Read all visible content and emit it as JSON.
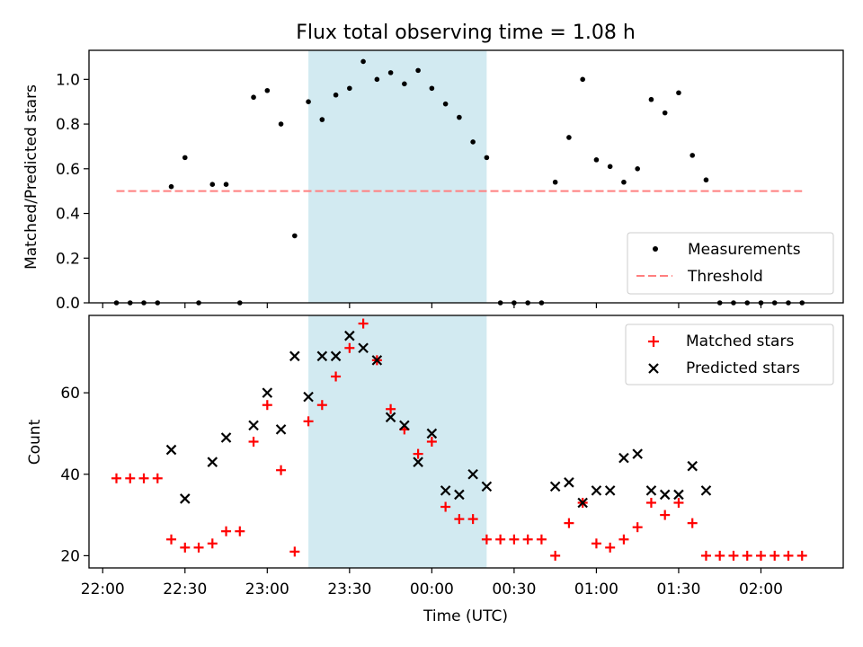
{
  "title": "Flux total observing time = 1.08 h",
  "colors": {
    "measurement": "#000000",
    "threshold": "#ff7f7f",
    "matched": "#ff0000",
    "predicted": "#000000",
    "shade": "#add8e6"
  },
  "chart_data": [
    {
      "type": "scatter",
      "ylabel": "Matched/Predicted stars",
      "ylim": [
        0,
        1.13
      ],
      "yticks": [
        "0.0",
        "0.2",
        "0.4",
        "0.6",
        "0.8",
        "1.0"
      ],
      "ytick_values": [
        0,
        0.2,
        0.4,
        0.6,
        0.8,
        1.0
      ],
      "legend": {
        "placement": "lower-right",
        "entries": [
          "Measurements",
          "Threshold"
        ]
      },
      "shaded_interval": [
        "23:15",
        "00:20"
      ],
      "threshold": {
        "name": "Threshold",
        "value": 0.5,
        "from": "22:05",
        "to": "02:15"
      },
      "series": [
        {
          "name": "Measurements",
          "marker": "dot",
          "points": [
            [
              "22:05",
              0
            ],
            [
              "22:10",
              0
            ],
            [
              "22:15",
              0
            ],
            [
              "22:20",
              0
            ],
            [
              "22:25",
              0.52
            ],
            [
              "22:30",
              0.65
            ],
            [
              "22:35",
              0
            ],
            [
              "22:40",
              0.53
            ],
            [
              "22:45",
              0.53
            ],
            [
              "22:50",
              0
            ],
            [
              "22:55",
              0.92
            ],
            [
              "23:00",
              0.95
            ],
            [
              "23:05",
              0.8
            ],
            [
              "23:10",
              0.3
            ],
            [
              "23:15",
              0.9
            ],
            [
              "23:20",
              0.82
            ],
            [
              "23:25",
              0.93
            ],
            [
              "23:30",
              0.96
            ],
            [
              "23:35",
              1.08
            ],
            [
              "23:40",
              1.0
            ],
            [
              "23:45",
              1.03
            ],
            [
              "23:50",
              0.98
            ],
            [
              "23:55",
              1.04
            ],
            [
              "00:00",
              0.96
            ],
            [
              "00:05",
              0.89
            ],
            [
              "00:10",
              0.83
            ],
            [
              "00:15",
              0.72
            ],
            [
              "00:20",
              0.65
            ],
            [
              "00:25",
              0
            ],
            [
              "00:30",
              0
            ],
            [
              "00:35",
              0
            ],
            [
              "00:40",
              0
            ],
            [
              "00:45",
              0.54
            ],
            [
              "00:50",
              0.74
            ],
            [
              "00:55",
              1.0
            ],
            [
              "01:00",
              0.64
            ],
            [
              "01:05",
              0.61
            ],
            [
              "01:10",
              0.54
            ],
            [
              "01:15",
              0.6
            ],
            [
              "01:20",
              0.91
            ],
            [
              "01:25",
              0.85
            ],
            [
              "01:30",
              0.94
            ],
            [
              "01:35",
              0.66
            ],
            [
              "01:40",
              0.55
            ],
            [
              "01:45",
              0
            ],
            [
              "01:50",
              0
            ],
            [
              "01:55",
              0
            ],
            [
              "02:00",
              0
            ],
            [
              "02:05",
              0
            ],
            [
              "02:10",
              0
            ],
            [
              "02:15",
              0
            ]
          ]
        }
      ]
    },
    {
      "type": "scatter",
      "xlabel": "Time (UTC)",
      "ylabel": "Count",
      "ylim": [
        17,
        79
      ],
      "yticks": [
        "20",
        "40",
        "60"
      ],
      "ytick_values": [
        20,
        40,
        60
      ],
      "xlim": [
        "21:55",
        "02:30"
      ],
      "xticks": [
        "22:00",
        "22:30",
        "23:00",
        "23:30",
        "00:00",
        "00:30",
        "01:00",
        "01:30",
        "02:00"
      ],
      "legend": {
        "placement": "upper-right",
        "entries": [
          "Matched stars",
          "Predicted stars"
        ]
      },
      "shaded_interval": [
        "23:15",
        "00:20"
      ],
      "series": [
        {
          "name": "Matched stars",
          "marker": "plus",
          "points": [
            [
              "22:05",
              39
            ],
            [
              "22:10",
              39
            ],
            [
              "22:15",
              39
            ],
            [
              "22:20",
              39
            ],
            [
              "22:25",
              24
            ],
            [
              "22:30",
              22
            ],
            [
              "22:35",
              22
            ],
            [
              "22:40",
              23
            ],
            [
              "22:45",
              26
            ],
            [
              "22:50",
              26
            ],
            [
              "22:55",
              48
            ],
            [
              "23:00",
              57
            ],
            [
              "23:05",
              41
            ],
            [
              "23:10",
              21
            ],
            [
              "23:15",
              53
            ],
            [
              "23:20",
              57
            ],
            [
              "23:25",
              64
            ],
            [
              "23:30",
              71
            ],
            [
              "23:35",
              77
            ],
            [
              "23:40",
              68
            ],
            [
              "23:45",
              56
            ],
            [
              "23:50",
              51
            ],
            [
              "23:55",
              45
            ],
            [
              "00:00",
              48
            ],
            [
              "00:05",
              32
            ],
            [
              "00:10",
              29
            ],
            [
              "00:15",
              29
            ],
            [
              "00:20",
              24
            ],
            [
              "00:25",
              24
            ],
            [
              "00:30",
              24
            ],
            [
              "00:35",
              24
            ],
            [
              "00:40",
              24
            ],
            [
              "00:45",
              20
            ],
            [
              "00:50",
              28
            ],
            [
              "00:55",
              33
            ],
            [
              "01:00",
              23
            ],
            [
              "01:05",
              22
            ],
            [
              "01:10",
              24
            ],
            [
              "01:15",
              27
            ],
            [
              "01:20",
              33
            ],
            [
              "01:25",
              30
            ],
            [
              "01:30",
              33
            ],
            [
              "01:35",
              28
            ],
            [
              "01:40",
              20
            ],
            [
              "01:45",
              20
            ],
            [
              "01:50",
              20
            ],
            [
              "01:55",
              20
            ],
            [
              "02:00",
              20
            ],
            [
              "02:05",
              20
            ],
            [
              "02:10",
              20
            ],
            [
              "02:15",
              20
            ]
          ]
        },
        {
          "name": "Predicted stars",
          "marker": "x",
          "points": [
            [
              "22:25",
              46
            ],
            [
              "22:30",
              34
            ],
            [
              "22:40",
              43
            ],
            [
              "22:45",
              49
            ],
            [
              "22:55",
              52
            ],
            [
              "23:00",
              60
            ],
            [
              "23:05",
              51
            ],
            [
              "23:10",
              69
            ],
            [
              "23:15",
              59
            ],
            [
              "23:20",
              69
            ],
            [
              "23:25",
              69
            ],
            [
              "23:30",
              74
            ],
            [
              "23:35",
              71
            ],
            [
              "23:40",
              68
            ],
            [
              "23:45",
              54
            ],
            [
              "23:50",
              52
            ],
            [
              "23:55",
              43
            ],
            [
              "00:00",
              50
            ],
            [
              "00:05",
              36
            ],
            [
              "00:10",
              35
            ],
            [
              "00:15",
              40
            ],
            [
              "00:20",
              37
            ],
            [
              "00:45",
              37
            ],
            [
              "00:50",
              38
            ],
            [
              "00:55",
              33
            ],
            [
              "01:00",
              36
            ],
            [
              "01:05",
              36
            ],
            [
              "01:10",
              44
            ],
            [
              "01:15",
              45
            ],
            [
              "01:20",
              36
            ],
            [
              "01:25",
              35
            ],
            [
              "01:30",
              35
            ],
            [
              "01:35",
              42
            ],
            [
              "01:40",
              36
            ]
          ]
        }
      ]
    }
  ]
}
